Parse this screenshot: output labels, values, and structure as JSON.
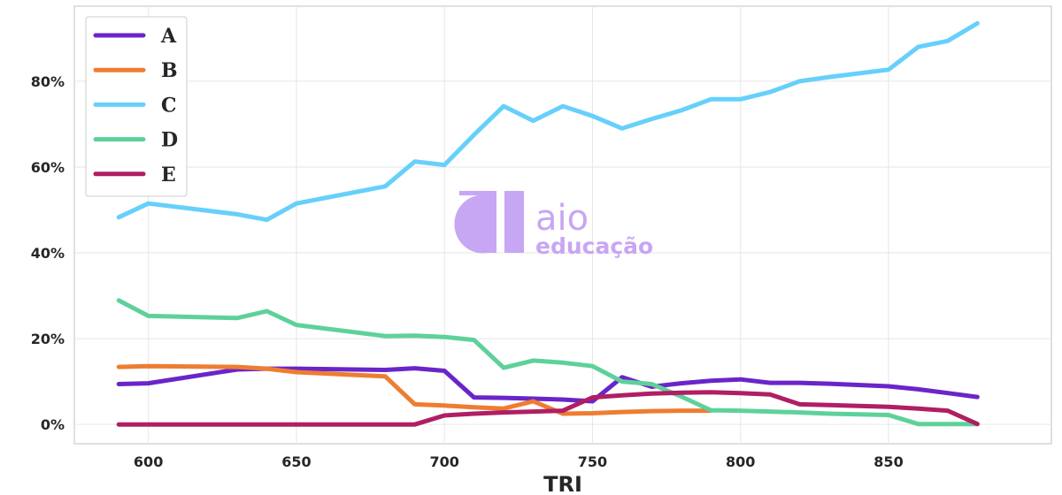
{
  "watermark": {
    "line1": "aio",
    "line2": "educação"
  },
  "chart_data": {
    "type": "line",
    "title": "",
    "xlabel": "TRI",
    "ylabel": "",
    "xlim": [
      575,
      905
    ],
    "ylim": [
      -4.5,
      97.5
    ],
    "xticks": [
      600,
      650,
      700,
      750,
      800,
      850
    ],
    "xtick_labels": [
      "600",
      "650",
      "700",
      "750",
      "800",
      "850"
    ],
    "yticks": [
      0,
      20,
      40,
      60,
      80
    ],
    "ytick_labels": [
      "0%",
      "20%",
      "40%",
      "60%",
      "80%"
    ],
    "grid": true,
    "legend_position": "top-left",
    "x": [
      590,
      600,
      630,
      640,
      650,
      680,
      690,
      700,
      710,
      720,
      730,
      740,
      750,
      760,
      770,
      780,
      790,
      800,
      810,
      820,
      830,
      850,
      860,
      870,
      880
    ],
    "series": [
      {
        "name": "A",
        "color": "#6a25c9",
        "values": [
          9.4,
          9.6,
          12.8,
          13.0,
          13.0,
          12.7,
          13.1,
          12.5,
          6.3,
          6.2,
          6.0,
          5.8,
          5.4,
          11.0,
          8.8,
          9.6,
          10.2,
          10.5,
          9.7,
          9.7,
          9.5,
          8.9,
          8.2,
          7.3,
          6.4
        ]
      },
      {
        "name": "B",
        "color": "#ee7d31",
        "values": [
          13.4,
          13.6,
          13.4,
          13.0,
          12.2,
          11.2,
          4.7,
          4.4,
          4.0,
          3.7,
          5.4,
          2.5,
          2.6,
          2.9,
          3.1,
          3.2,
          3.2,
          null,
          null,
          null,
          null,
          null,
          null,
          null,
          null
        ]
      },
      {
        "name": "C",
        "color": "#66d0fb",
        "values": [
          48.3,
          51.5,
          49.0,
          47.7,
          51.5,
          55.5,
          61.3,
          60.5,
          67.5,
          74.2,
          70.8,
          74.2,
          71.9,
          69.0,
          71.2,
          73.2,
          75.8,
          75.8,
          77.5,
          80.0,
          81.0,
          82.7,
          88.0,
          89.4,
          93.5
        ]
      },
      {
        "name": "D",
        "color": "#5ed19a",
        "values": [
          28.9,
          25.3,
          24.8,
          26.4,
          23.2,
          20.6,
          20.7,
          20.4,
          19.7,
          13.2,
          14.9,
          14.4,
          13.6,
          10.0,
          9.4,
          6.5,
          3.3,
          3.2,
          3.0,
          2.8,
          2.5,
          2.2,
          0.1,
          0.1,
          0.1
        ]
      },
      {
        "name": "E",
        "color": "#b01e64",
        "values": [
          0,
          0,
          0,
          0,
          0,
          0,
          0,
          2.1,
          2.5,
          2.8,
          3.0,
          3.2,
          6.3,
          6.8,
          7.2,
          7.4,
          7.5,
          7.3,
          7.0,
          4.7,
          4.5,
          4.1,
          3.7,
          3.2,
          0.1
        ]
      }
    ]
  }
}
